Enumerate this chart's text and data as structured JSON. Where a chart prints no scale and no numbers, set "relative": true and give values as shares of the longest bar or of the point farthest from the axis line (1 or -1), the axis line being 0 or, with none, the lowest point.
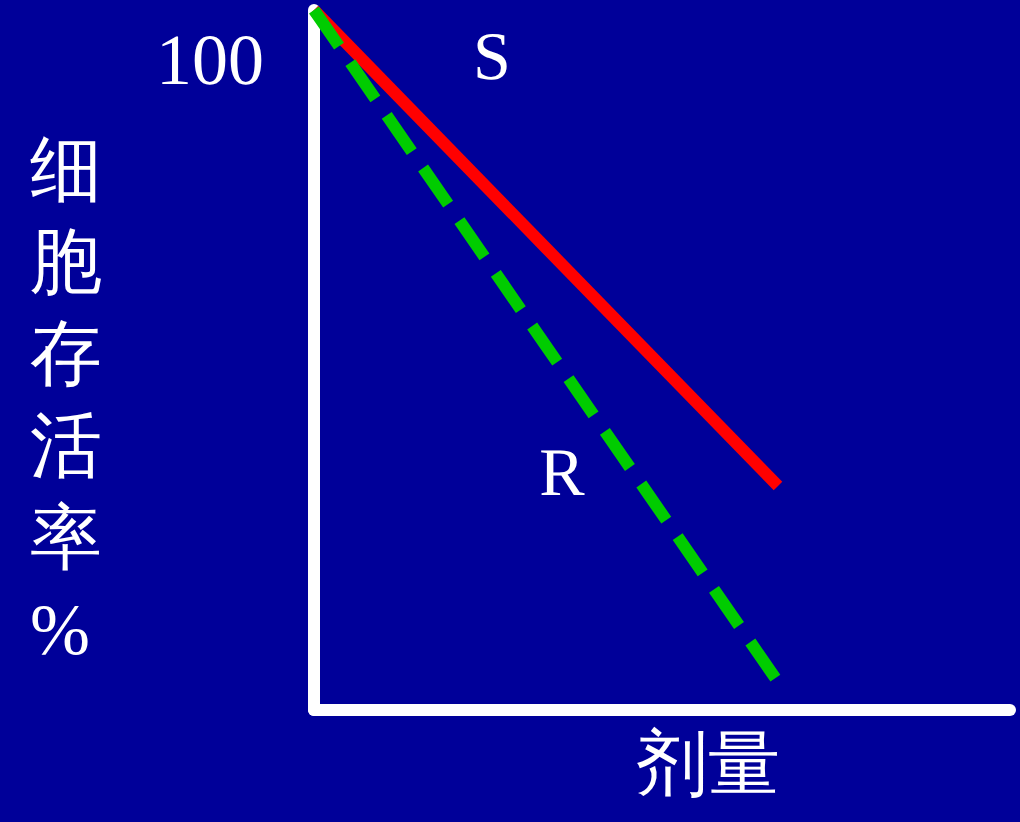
{
  "chart_data": {
    "type": "line",
    "relative": true,
    "ylabel": "细胞存活率%",
    "xlabel": "剂量",
    "annotations": [
      "100"
    ],
    "categories": [
      null,
      null,
      null,
      null
    ],
    "marker": "none",
    "grid": false,
    "legend": false,
    "series": [
      {
        "name": "S",
        "color": "#ff0000",
        "line_style": "solid",
        "values": [
          1,
          0.66,
          0.32,
          null
        ]
      },
      {
        "name": "R",
        "color": "#00cc00",
        "line_style": "dashed",
        "values": [
          1,
          0.52,
          0.04,
          null
        ]
      }
    ]
  }
}
